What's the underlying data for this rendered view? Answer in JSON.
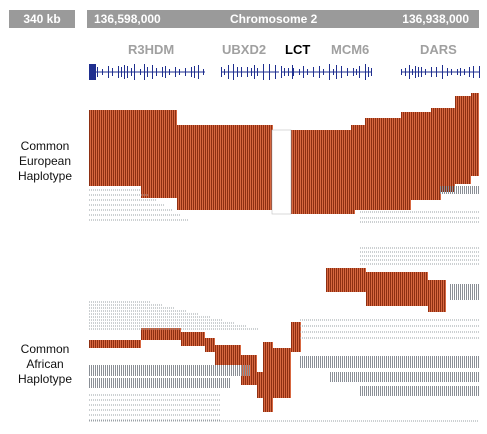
{
  "header": {
    "scale_label": "340 kb",
    "coord_start": "136,598,000",
    "chromosome": "Chromosome 2",
    "coord_end": "136,938,000"
  },
  "genes": [
    {
      "name": "R3HDM",
      "highlight": false
    },
    {
      "name": "UBXD2",
      "highlight": false
    },
    {
      "name": "LCT",
      "highlight": true
    },
    {
      "name": "MCM6",
      "highlight": false
    },
    {
      "name": "DARS",
      "highlight": false
    }
  ],
  "haplotypes": {
    "european": {
      "line1": "Common",
      "line2": "European",
      "line3": "Haplotype"
    },
    "african": {
      "line1": "Common",
      "line2": "African",
      "line3": "Haplotype"
    }
  },
  "colors": {
    "header_bg": "#9a9a9a",
    "gene_track": "#1f2f8f",
    "shared_haplotype": "#d9582a",
    "shared_stripe": "#8e2f12",
    "other_haplotype": "#8a8f96",
    "gene_label": "#a0a0a0"
  }
}
